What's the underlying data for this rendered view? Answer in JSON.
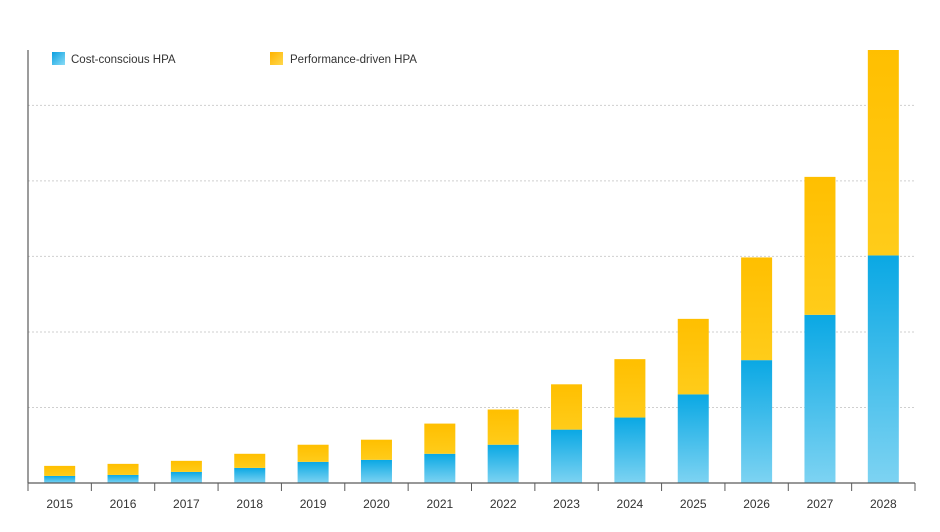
{
  "chart_data": {
    "type": "bar",
    "stacked": true,
    "title": "",
    "xlabel": "",
    "ylabel": "",
    "categories": [
      "2015",
      "2016",
      "2017",
      "2018",
      "2019",
      "2020",
      "2021",
      "2022",
      "2023",
      "2024",
      "2025",
      "2026",
      "2027",
      "2028"
    ],
    "series": [
      {
        "name": "Cost-conscious HPA",
        "color": "#12b2e6",
        "values": [
          7,
          8,
          11,
          15,
          21,
          23,
          29,
          38,
          53,
          65,
          88,
          122,
          167,
          226
        ]
      },
      {
        "name": "Performance-driven HPA",
        "color": "#ffc000",
        "values": [
          10,
          11,
          11,
          14,
          17,
          20,
          30,
          35,
          45,
          58,
          75,
          102,
          137,
          204
        ]
      }
    ],
    "ylim": [
      0,
      430
    ],
    "y_gridlines": [
      75,
      150,
      225,
      300,
      375
    ],
    "y_tick_labels_shown": false,
    "grid": true,
    "legend_position": "top-left"
  },
  "legend": {
    "items": [
      {
        "label": "Cost-conscious HPA",
        "color": "#12b2e6",
        "icon": "blue-gradient-square-icon"
      },
      {
        "label": "Performance-driven HPA",
        "color": "#ffc000",
        "icon": "yellow-gradient-square-icon"
      }
    ]
  }
}
